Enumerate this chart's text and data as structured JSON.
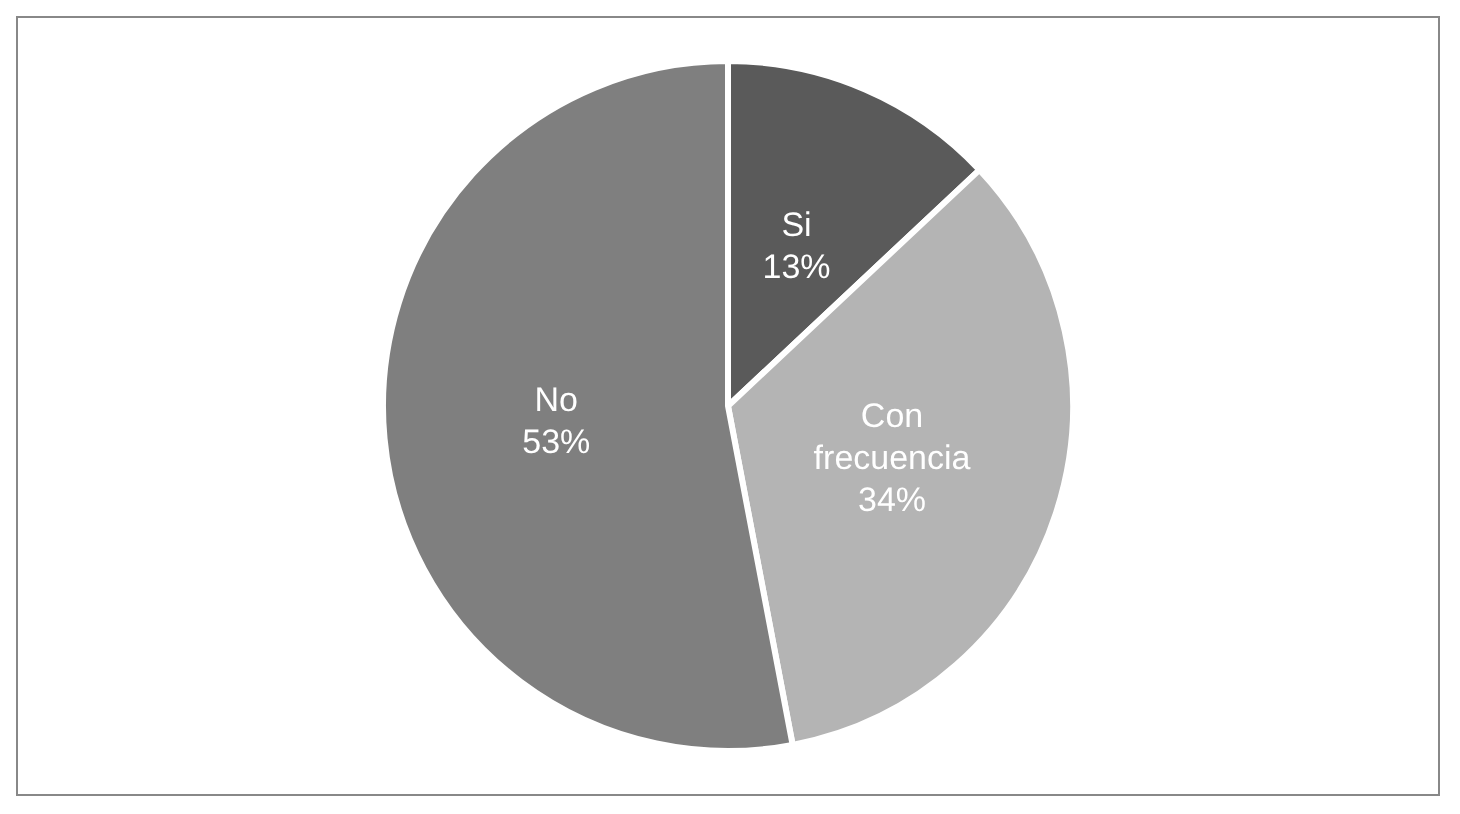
{
  "chart_data": {
    "type": "pie",
    "categories": [
      "Si",
      "Con frecuencia",
      "No"
    ],
    "values": [
      13,
      34,
      53
    ],
    "colors": [
      "#5a5a5a",
      "#b4b4b4",
      "#7f7f7f"
    ],
    "value_labels": [
      "13%",
      "34%",
      "53%"
    ],
    "legend": false
  }
}
